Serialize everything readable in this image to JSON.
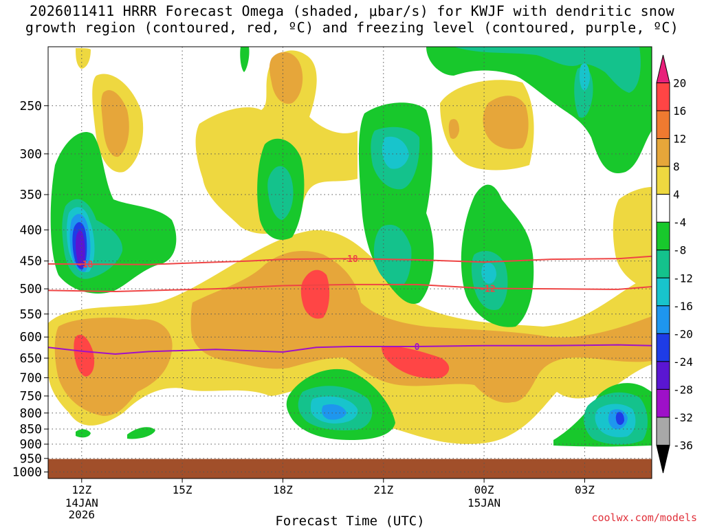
{
  "chart_data": {
    "type": "heatmap",
    "title_line1": "2026011411 HRRR Forecast Omega (shaded, μbar/s) for KWJF with dendritic snow",
    "title_line2": "growth region (contoured, red, ºC) and freezing level (contoured, purple, ºC)",
    "xlabel": "Forecast Time (UTC)",
    "ylabel": "",
    "credit": "coolwx.com/models",
    "x_ticks": [
      {
        "label": "12Z",
        "hour": 12,
        "sub1": "14JAN",
        "sub2": "2026"
      },
      {
        "label": "15Z",
        "hour": 15,
        "sub1": "",
        "sub2": ""
      },
      {
        "label": "18Z",
        "hour": 18,
        "sub1": "",
        "sub2": ""
      },
      {
        "label": "21Z",
        "hour": 21,
        "sub1": "",
        "sub2": ""
      },
      {
        "label": "00Z",
        "hour": 24,
        "sub1": "15JAN",
        "sub2": ""
      },
      {
        "label": "03Z",
        "hour": 27,
        "sub1": "",
        "sub2": ""
      }
    ],
    "x_range_hours": [
      11,
      29
    ],
    "y_ticks": [
      250,
      300,
      350,
      400,
      450,
      500,
      550,
      600,
      650,
      700,
      750,
      800,
      850,
      900,
      950,
      1000
    ],
    "y_range_hpa": [
      200,
      1025
    ],
    "ground_level_hpa": 952,
    "colorbar": {
      "labels": [
        "20",
        "16",
        "12",
        "8",
        "4",
        "-4",
        "-8",
        "-12",
        "-16",
        "-20",
        "-24",
        "-28",
        "-32",
        "-36"
      ],
      "colors": [
        "#e8207a",
        "#ff4545",
        "#f07a30",
        "#e6a63a",
        "#eed840",
        "#ffffff",
        "#18c82c",
        "#14c28c",
        "#18c4cc",
        "#1e96ee",
        "#1e3ce6",
        "#5a16d2",
        "#9e10c8",
        "#a8a8a8",
        "#000000"
      ]
    },
    "series": [
      {
        "name": "Dendritic growth -18C",
        "label": "-18",
        "color": "#ee4444",
        "x": [
          11,
          14,
          17,
          18,
          20,
          22,
          24,
          26,
          28,
          29
        ],
        "y": [
          455,
          456,
          450,
          447,
          446,
          448,
          452,
          447,
          446,
          442
        ]
      },
      {
        "name": "Dendritic growth -12C",
        "label": "-12",
        "color": "#ee4444",
        "x": [
          11,
          13,
          16,
          18,
          20,
          22,
          24,
          26,
          28,
          29
        ],
        "y": [
          503,
          505,
          500,
          494,
          492,
          492,
          499,
          500,
          501,
          496
        ]
      },
      {
        "name": "Freezing level 0C",
        "label": "0",
        "color": "#a010c8",
        "x": [
          11,
          12,
          13,
          14,
          16,
          18,
          19,
          20,
          22,
          24,
          26,
          28,
          29
        ],
        "y": [
          624,
          633,
          640,
          634,
          629,
          635,
          624,
          622,
          622,
          620,
          620,
          618,
          620
        ]
      }
    ],
    "omega_regions": [
      {
        "name": "green 12Z column",
        "value": -8,
        "color": "#18c82c",
        "cx": 12.0,
        "p": 380,
        "rx": 0.8,
        "rp": 110
      },
      {
        "name": "cyan 12Z column",
        "value": -12,
        "color": "#14c28c",
        "cx": 12.1,
        "p": 410,
        "rx": 0.6,
        "rp": 70
      },
      {
        "name": "blue 12Z column",
        "value": -20,
        "color": "#1e96ee",
        "cx": 12.05,
        "p": 405,
        "rx": 0.25,
        "rp": 60
      },
      {
        "name": "purple 12Z core",
        "value": -28,
        "color": "#5a16d2",
        "cx": 12.05,
        "p": 405,
        "rx": 0.15,
        "rp": 40
      },
      {
        "name": "orange 12Z low",
        "value": 12,
        "color": "#f07a30",
        "cx": 12.3,
        "p": 680,
        "rx": 1.1,
        "rp": 80
      },
      {
        "name": "red 12Z low",
        "value": 16,
        "color": "#ff4545",
        "cx": 12.0,
        "p": 670,
        "rx": 0.25,
        "rp": 40
      },
      {
        "name": "orange 19Z",
        "value": 12,
        "color": "#f07a30",
        "cx": 19.0,
        "p": 545,
        "rx": 1.0,
        "rp": 90
      },
      {
        "name": "red 19Z core",
        "value": 16,
        "color": "#ff4545",
        "cx": 19.0,
        "p": 520,
        "rx": 0.35,
        "rp": 55
      },
      {
        "name": "cyan 19Z low",
        "value": -12,
        "color": "#14c28c",
        "cx": 19.5,
        "p": 805,
        "rx": 1.0,
        "rp": 55
      },
      {
        "name": "blue 19Z low",
        "value": -16,
        "color": "#1e96ee",
        "cx": 19.5,
        "p": 820,
        "rx": 0.5,
        "rp": 25
      },
      {
        "name": "red 22Z",
        "value": 16,
        "color": "#ff4545",
        "cx": 22.5,
        "p": 690,
        "rx": 0.9,
        "rp": 25
      },
      {
        "name": "cyan 21Z upper",
        "value": -12,
        "color": "#14c28c",
        "cx": 21.5,
        "p": 310,
        "rx": 0.5,
        "rp": 50
      },
      {
        "name": "cyan 00Z",
        "value": -12,
        "color": "#14c28c",
        "cx": 24.1,
        "p": 495,
        "rx": 0.4,
        "rp": 50
      },
      {
        "name": "cyan 04Z low",
        "value": -12,
        "color": "#14c28c",
        "cx": 28.0,
        "p": 840,
        "rx": 1.0,
        "rp": 50
      },
      {
        "name": "blue 04Z core",
        "value": -24,
        "color": "#1e3ce6",
        "cx": 28.0,
        "p": 840,
        "rx": 0.12,
        "rp": 15
      }
    ]
  }
}
